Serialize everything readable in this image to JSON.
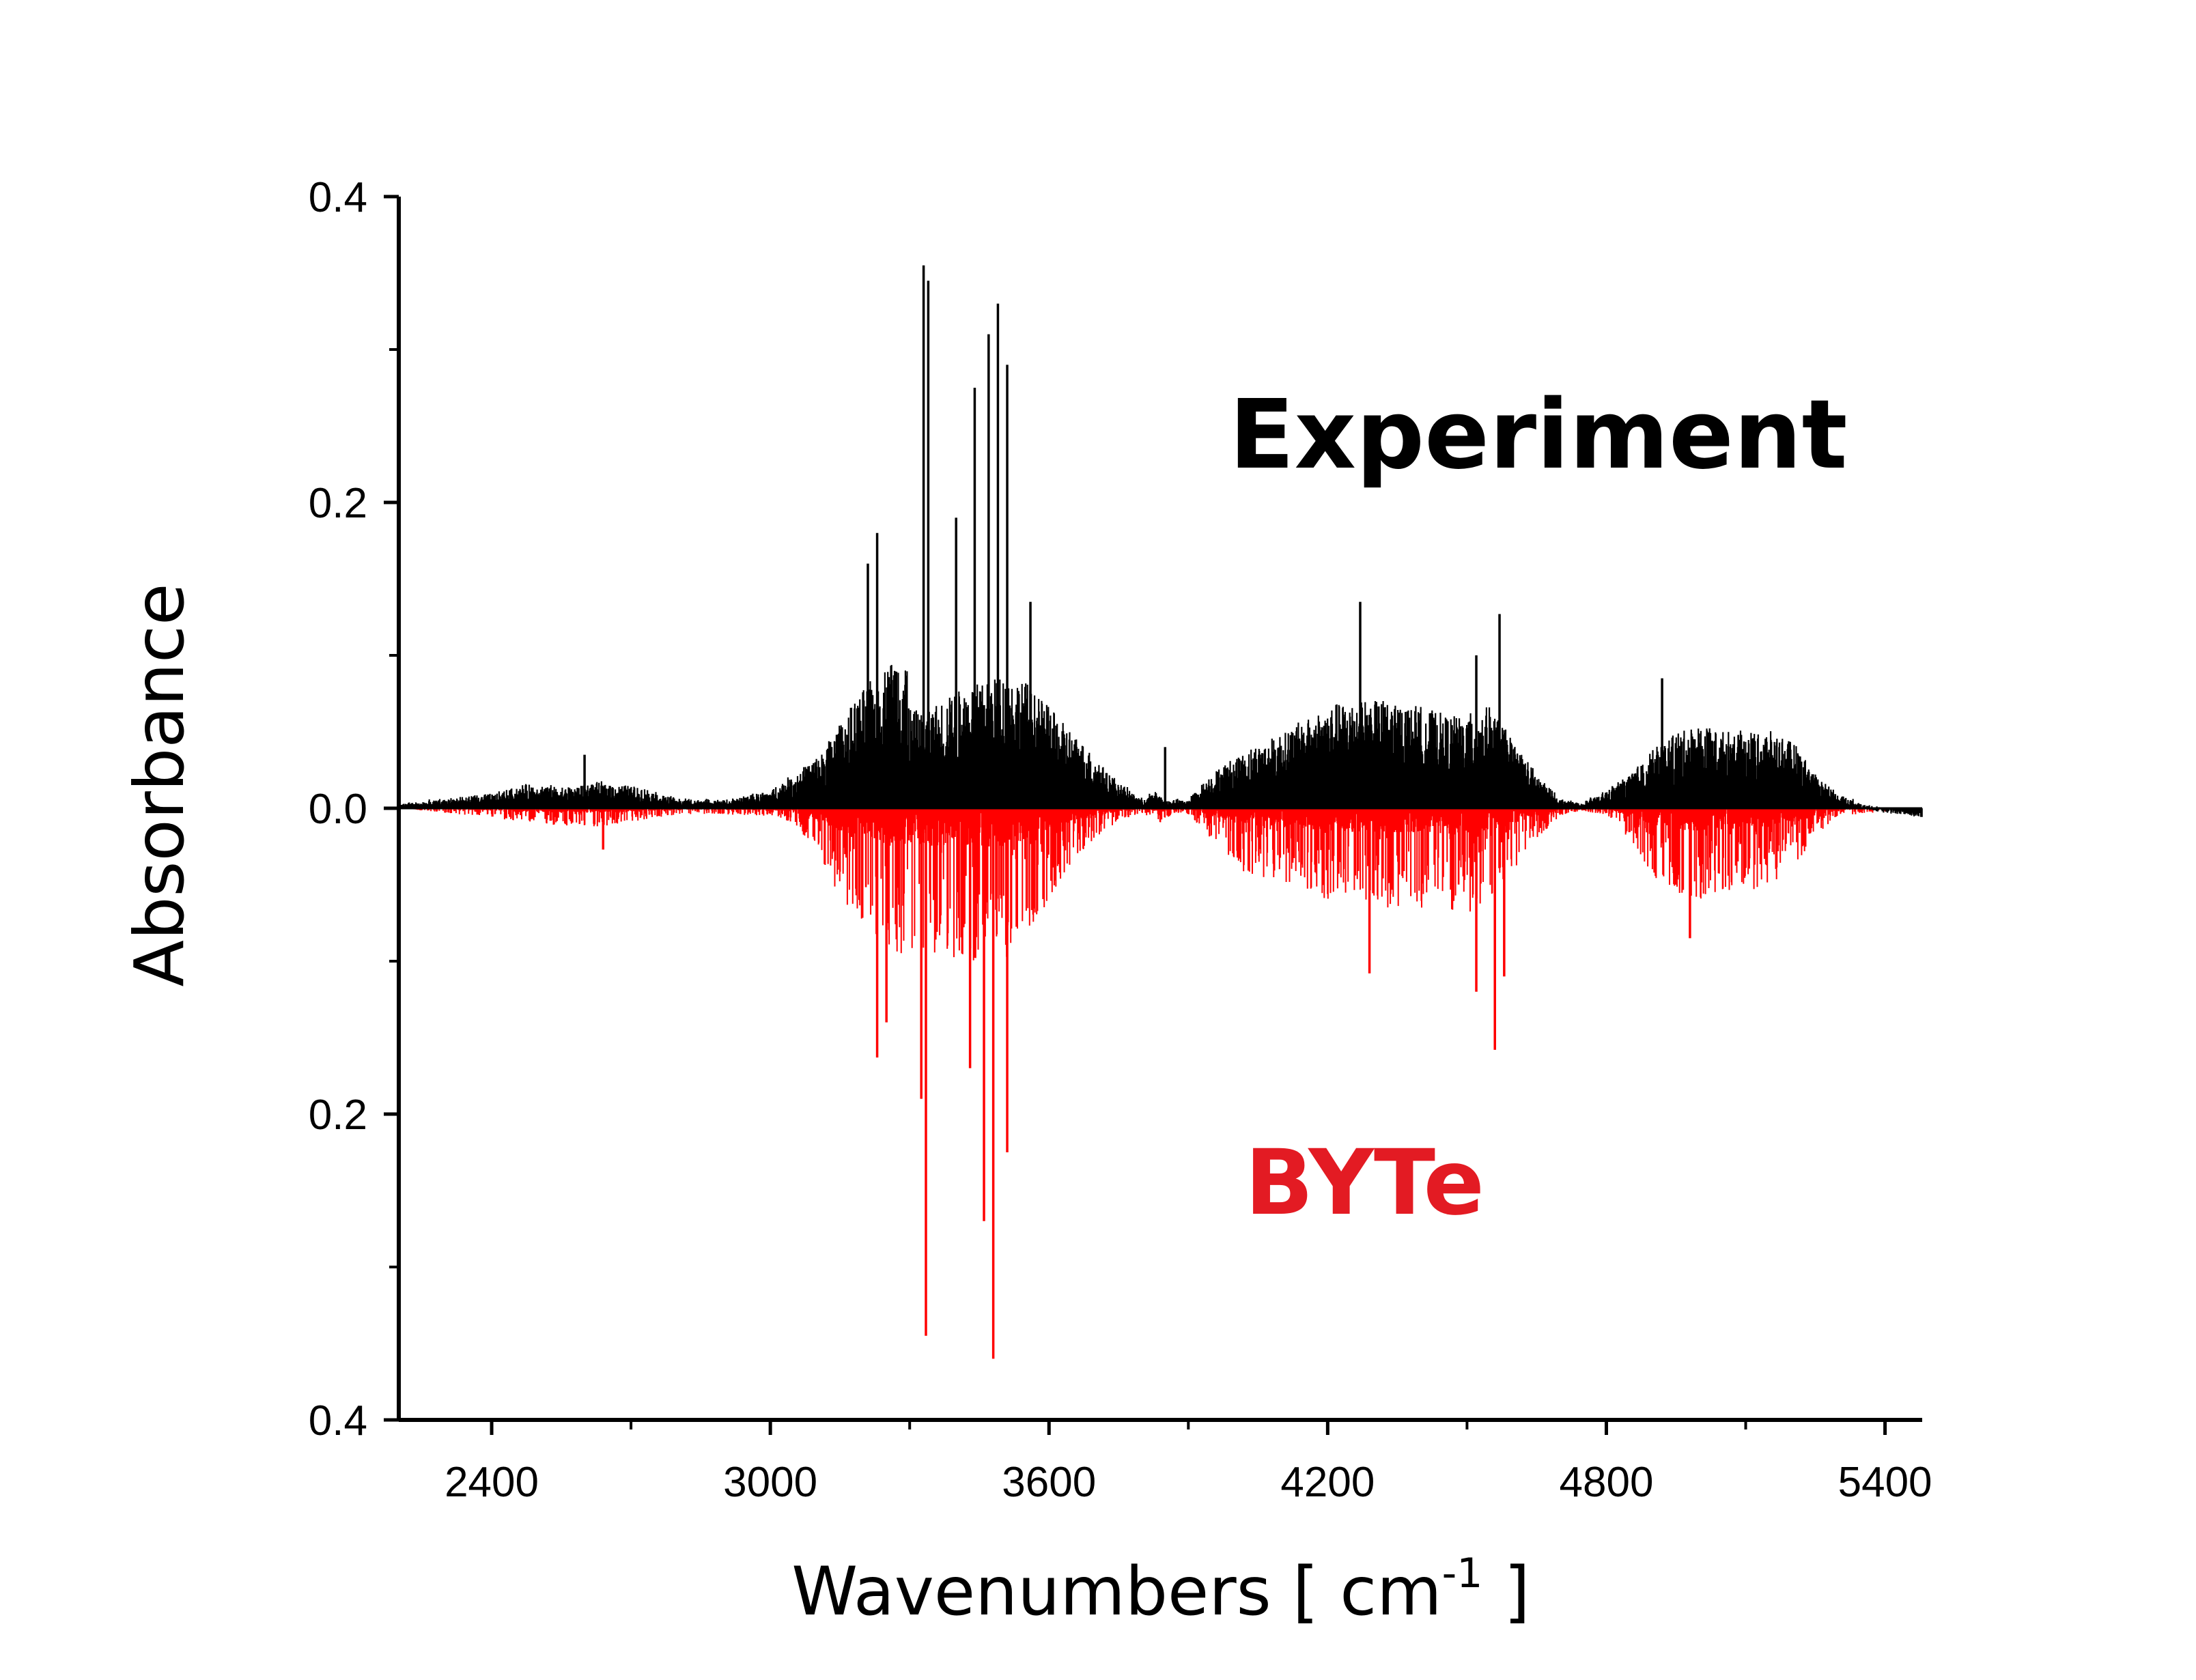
{
  "chart_data": {
    "type": "line",
    "title": "",
    "xlabel": "Wavenumbers [ cm",
    "xlabel_superscript": "-1",
    "xlabel_suffix": " ]",
    "ylabel": "Absorbance",
    "xlim": [
      2200,
      5480
    ],
    "ylim": [
      -0.4,
      0.4
    ],
    "x_ticks": [
      2400,
      3000,
      3600,
      4200,
      4800,
      5400
    ],
    "x_tick_labels": [
      "2400",
      "3000",
      "3600",
      "4200",
      "4800",
      "5400"
    ],
    "y_ticks": [
      0.4,
      0.2,
      0.0,
      -0.2,
      -0.4
    ],
    "y_tick_labels": [
      "0.4",
      "0.2",
      "0.0",
      "0.2",
      "0.4"
    ],
    "grid": false,
    "legend": "none",
    "annotations": [
      {
        "text": "Experiment",
        "color": "#000000"
      },
      {
        "text": "BYTe",
        "color": "#e31b23"
      }
    ],
    "series": [
      {
        "name": "Experiment",
        "color": "#000000",
        "direction": "up",
        "envelope": {
          "x": [
            2200,
            2400,
            2480,
            2560,
            2640,
            2720,
            2800,
            2900,
            3000,
            3100,
            3150,
            3200,
            3250,
            3290,
            3300,
            3330,
            3350,
            3400,
            3450,
            3500,
            3550,
            3600,
            3650,
            3700,
            3750,
            3800,
            3830,
            3850,
            3900,
            3950,
            4000,
            4100,
            4200,
            4250,
            4300,
            4400,
            4450,
            4500,
            4550,
            4600,
            4650,
            4700,
            4750,
            4800,
            4850,
            4900,
            4950,
            5000,
            5050,
            5100,
            5150,
            5200,
            5250,
            5300,
            5350,
            5400,
            5480
          ],
          "y": [
            0.002,
            0.008,
            0.014,
            0.012,
            0.015,
            0.012,
            0.005,
            0.004,
            0.01,
            0.03,
            0.05,
            0.07,
            0.085,
            0.1,
            0.06,
            0.055,
            0.06,
            0.07,
            0.075,
            0.08,
            0.075,
            0.06,
            0.045,
            0.03,
            0.015,
            0.005,
            0.01,
            0.004,
            0.005,
            0.02,
            0.03,
            0.045,
            0.06,
            0.065,
            0.065,
            0.06,
            0.055,
            0.055,
            0.06,
            0.04,
            0.02,
            0.005,
            0.003,
            0.01,
            0.02,
            0.035,
            0.045,
            0.05,
            0.045,
            0.045,
            0.045,
            0.04,
            0.02,
            0.008,
            0.002,
            -0.002,
            -0.005
          ]
        },
        "peaks": [
          {
            "x": 2600,
            "y": 0.035
          },
          {
            "x": 3210,
            "y": 0.16
          },
          {
            "x": 3230,
            "y": 0.18
          },
          {
            "x": 3330,
            "y": 0.355
          },
          {
            "x": 3340,
            "y": 0.345
          },
          {
            "x": 3440,
            "y": 0.275
          },
          {
            "x": 3470,
            "y": 0.31
          },
          {
            "x": 3490,
            "y": 0.33
          },
          {
            "x": 3510,
            "y": 0.29
          },
          {
            "x": 3400,
            "y": 0.19
          },
          {
            "x": 3560,
            "y": 0.135
          },
          {
            "x": 3850,
            "y": 0.04
          },
          {
            "x": 4270,
            "y": 0.135
          },
          {
            "x": 4520,
            "y": 0.1
          },
          {
            "x": 4570,
            "y": 0.127
          },
          {
            "x": 4920,
            "y": 0.085
          }
        ]
      },
      {
        "name": "BYTe",
        "color": "#ff0000",
        "direction": "down",
        "envelope": {
          "x": [
            2200,
            2400,
            2480,
            2560,
            2640,
            2720,
            2800,
            2900,
            3000,
            3050,
            3100,
            3150,
            3200,
            3250,
            3300,
            3350,
            3400,
            3450,
            3500,
            3550,
            3600,
            3650,
            3700,
            3750,
            3800,
            3840,
            3870,
            3900,
            3950,
            4000,
            4100,
            4200,
            4250,
            4300,
            4400,
            4450,
            4500,
            4550,
            4600,
            4650,
            4700,
            4750,
            4800,
            4850,
            4900,
            4950,
            5000,
            5050,
            5100,
            5150,
            5200,
            5250,
            5300,
            5480
          ],
          "y": [
            0.0,
            0.006,
            0.01,
            0.012,
            0.012,
            0.008,
            0.004,
            0.004,
            0.005,
            0.01,
            0.03,
            0.06,
            0.075,
            0.09,
            0.1,
            0.1,
            0.1,
            0.1,
            0.1,
            0.085,
            0.06,
            0.035,
            0.02,
            0.008,
            0.003,
            0.01,
            0.003,
            0.004,
            0.02,
            0.04,
            0.05,
            0.06,
            0.065,
            0.065,
            0.065,
            0.065,
            0.07,
            0.06,
            0.04,
            0.02,
            0.005,
            0.002,
            0.004,
            0.02,
            0.045,
            0.055,
            0.06,
            0.055,
            0.055,
            0.05,
            0.04,
            0.02,
            0.005,
            0.0
          ]
        },
        "peaks": [
          {
            "x": 2640,
            "y": 0.027
          },
          {
            "x": 3230,
            "y": 0.163
          },
          {
            "x": 3250,
            "y": 0.14
          },
          {
            "x": 3335,
            "y": 0.345
          },
          {
            "x": 3325,
            "y": 0.19
          },
          {
            "x": 3460,
            "y": 0.27
          },
          {
            "x": 3480,
            "y": 0.36
          },
          {
            "x": 3510,
            "y": 0.225
          },
          {
            "x": 3430,
            "y": 0.17
          },
          {
            "x": 4290,
            "y": 0.108
          },
          {
            "x": 4520,
            "y": 0.12
          },
          {
            "x": 4560,
            "y": 0.158
          },
          {
            "x": 4580,
            "y": 0.11
          },
          {
            "x": 4980,
            "y": 0.085
          }
        ]
      }
    ]
  }
}
